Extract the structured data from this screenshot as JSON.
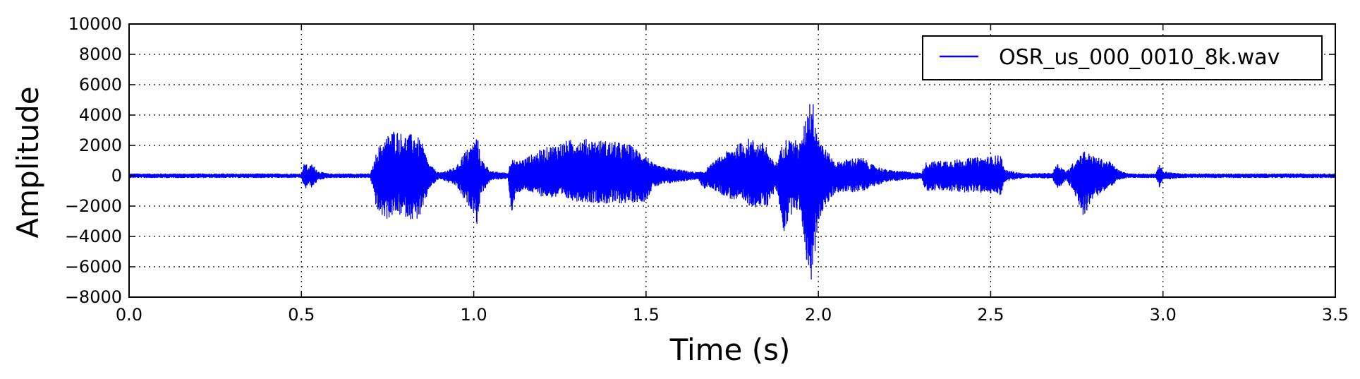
{
  "chart_data": {
    "type": "line",
    "xlabel": "Time (s)",
    "ylabel": "Amplitude",
    "xlim": [
      0.0,
      3.5
    ],
    "ylim": [
      -8000,
      10000
    ],
    "xticks": [
      "0.0",
      "0.5",
      "1.0",
      "1.5",
      "2.0",
      "2.5",
      "3.0",
      "3.5"
    ],
    "yticks": [
      "10000",
      "8000",
      "6000",
      "4000",
      "2000",
      "0",
      "−2000",
      "−4000",
      "−6000",
      "−8000"
    ],
    "grid": true,
    "legend_position": "top-right",
    "series": [
      {
        "name": "OSR_us_000_0010_8k.wav",
        "color": "#0000ff",
        "envelope_time": [
          0.0,
          0.5,
          0.51,
          0.52,
          0.53,
          0.55,
          0.58,
          0.7,
          0.71,
          0.72,
          0.75,
          0.77,
          0.8,
          0.83,
          0.85,
          0.87,
          0.9,
          0.95,
          0.97,
          1.0,
          1.01,
          1.02,
          1.05,
          1.1,
          1.11,
          1.12,
          1.15,
          1.2,
          1.25,
          1.3,
          1.35,
          1.4,
          1.45,
          1.5,
          1.52,
          1.55,
          1.6,
          1.65,
          1.67,
          1.68,
          1.7,
          1.75,
          1.8,
          1.85,
          1.86,
          1.88,
          1.9,
          1.93,
          1.95,
          1.97,
          1.98,
          1.99,
          2.0,
          2.02,
          2.05,
          2.1,
          2.13,
          2.15,
          2.2,
          2.3,
          2.31,
          2.35,
          2.4,
          2.45,
          2.5,
          2.53,
          2.54,
          2.6,
          2.68,
          2.69,
          2.72,
          2.75,
          2.77,
          2.8,
          2.85,
          2.87,
          2.9,
          2.98,
          2.99,
          3.0,
          3.05,
          3.5
        ],
        "envelope_max": [
          150,
          150,
          1000,
          500,
          800,
          300,
          150,
          150,
          800,
          1800,
          2700,
          3100,
          2700,
          2800,
          2200,
          800,
          200,
          600,
          1500,
          2200,
          2800,
          1200,
          300,
          200,
          1500,
          900,
          1200,
          1800,
          2200,
          2500,
          2400,
          2300,
          2100,
          1400,
          800,
          600,
          400,
          250,
          300,
          600,
          1000,
          1900,
          2500,
          2100,
          1200,
          900,
          2500,
          2400,
          2200,
          4800,
          5500,
          4200,
          2900,
          1800,
          900,
          1200,
          1200,
          800,
          400,
          200,
          900,
          1000,
          1100,
          1200,
          1300,
          1400,
          400,
          150,
          200,
          900,
          300,
          1200,
          1700,
          1300,
          900,
          400,
          150,
          150,
          900,
          300,
          150,
          150
        ],
        "envelope_min": [
          -150,
          -150,
          -1000,
          -600,
          -800,
          -300,
          -150,
          -150,
          -1200,
          -2500,
          -2900,
          -2600,
          -2700,
          -3000,
          -2600,
          -900,
          -200,
          -700,
          -1600,
          -2400,
          -3300,
          -1300,
          -300,
          -200,
          -3300,
          -1200,
          -1000,
          -1400,
          -1500,
          -1700,
          -1800,
          -1900,
          -1800,
          -1700,
          -800,
          -600,
          -400,
          -250,
          -1000,
          -700,
          -1000,
          -1600,
          -2000,
          -2200,
          -1500,
          -1000,
          -3800,
          -2100,
          -2600,
          -6500,
          -7100,
          -5300,
          -3000,
          -2100,
          -1100,
          -1100,
          -1000,
          -800,
          -400,
          -200,
          -1000,
          -1000,
          -1100,
          -1100,
          -1200,
          -1300,
          -400,
          -150,
          -200,
          -1000,
          -300,
          -1600,
          -2700,
          -1500,
          -700,
          -300,
          -150,
          -150,
          -800,
          -300,
          -150,
          -150
        ]
      }
    ]
  }
}
